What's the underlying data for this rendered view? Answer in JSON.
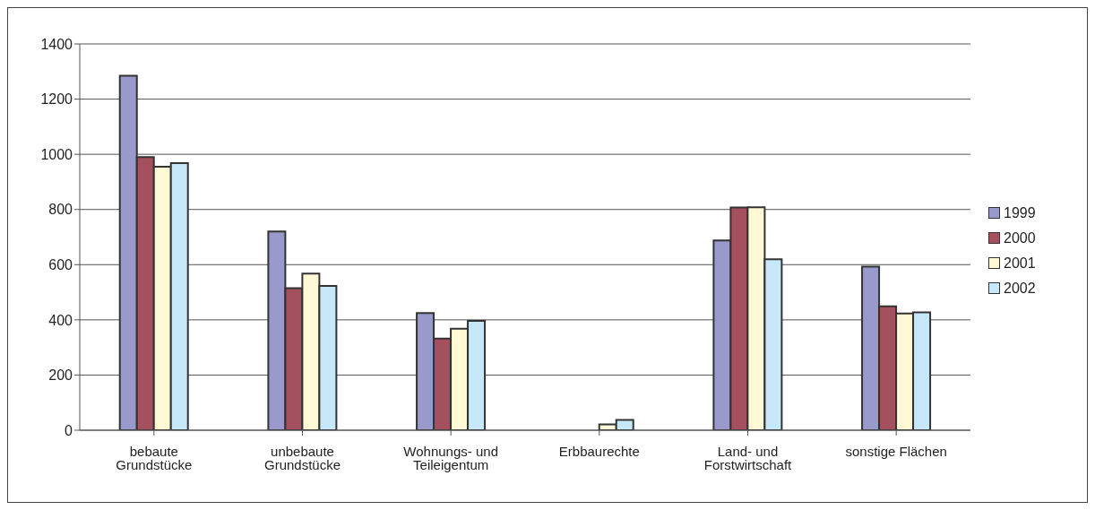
{
  "chart_data": {
    "type": "bar",
    "categories": [
      "bebaute Grundstücke",
      "unbebaute Grundstücke",
      "Wohnungs- und Teileigentum",
      "Erbbaurechte",
      "Land- und Forstwirtschaft",
      "sonstige Flächen"
    ],
    "series": [
      {
        "name": "1999",
        "color": "#9999cc",
        "values": [
          1285,
          720,
          425,
          0,
          688,
          593
        ]
      },
      {
        "name": "2000",
        "color": "#a5505e",
        "values": [
          990,
          515,
          332,
          0,
          807,
          449
        ]
      },
      {
        "name": "2001",
        "color": "#fff9d6",
        "values": [
          955,
          568,
          368,
          21,
          808,
          423
        ]
      },
      {
        "name": "2002",
        "color": "#c6e8f8",
        "values": [
          968,
          523,
          396,
          37,
          620,
          427
        ]
      }
    ],
    "ylim": [
      0,
      1400
    ],
    "yticks": [
      0,
      200,
      400,
      600,
      800,
      1000,
      1200,
      1400
    ],
    "grid": "y",
    "legend": "right"
  }
}
